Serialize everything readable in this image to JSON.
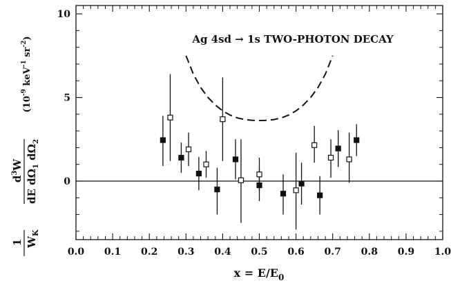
{
  "chart_data": {
    "type": "scatter",
    "title": "Ag 4sd → 1s TWO-PHOTON DECAY",
    "xlabel": "x = E/E",
    "xlabel_sub": "0",
    "ylabel_parts": {
      "prefix_num": "1",
      "prefix_den": "W",
      "prefix_den_sub": "K",
      "num": "d",
      "num_sup": "3",
      "num_tail": "W",
      "den": "dE dΩ",
      "den_sub1": "1",
      "den_mid": " dΩ",
      "den_sub2": "2",
      "units": "(10",
      "units_sup1": "-9",
      "units_mid": " keV",
      "units_sup2": "-1",
      "units_mid2": " sr",
      "units_sup3": "-2",
      "units_end": ")"
    },
    "xlim": [
      0.0,
      1.0
    ],
    "ylim": [
      -3.5,
      10.5
    ],
    "xticks": [
      "0.0",
      "0.1",
      "0.2",
      "0.3",
      "0.4",
      "0.5",
      "0.6",
      "0.7",
      "0.8",
      "0.9",
      "1.0"
    ],
    "yticks": [
      "0",
      "5",
      "10"
    ],
    "series": [
      {
        "marker": "filled-square",
        "points": [
          {
            "x": 0.237,
            "y": 2.45,
            "lo": 0.9,
            "hi": 3.9
          },
          {
            "x": 0.287,
            "y": 1.4,
            "lo": 0.5,
            "hi": 2.3
          },
          {
            "x": 0.335,
            "y": 0.45,
            "lo": -0.55,
            "hi": 1.45
          },
          {
            "x": 0.385,
            "y": -0.5,
            "lo": -2.0,
            "hi": 0.8
          },
          {
            "x": 0.435,
            "y": 1.3,
            "lo": 0.1,
            "hi": 2.5
          },
          {
            "x": 0.5,
            "y": -0.25,
            "lo": -1.2,
            "hi": 0.7
          },
          {
            "x": 0.565,
            "y": -0.75,
            "lo": -2.0,
            "hi": 0.4
          },
          {
            "x": 0.615,
            "y": -0.15,
            "lo": -1.4,
            "hi": 1.1
          },
          {
            "x": 0.665,
            "y": -0.85,
            "lo": -2.0,
            "hi": 0.3
          },
          {
            "x": 0.715,
            "y": 1.95,
            "lo": 0.85,
            "hi": 3.05
          },
          {
            "x": 0.765,
            "y": 2.45,
            "lo": 1.5,
            "hi": 3.4
          }
        ]
      },
      {
        "marker": "open-square",
        "points": [
          {
            "x": 0.257,
            "y": 3.8,
            "lo": 1.2,
            "hi": 6.4
          },
          {
            "x": 0.307,
            "y": 1.9,
            "lo": 0.9,
            "hi": 2.9
          },
          {
            "x": 0.355,
            "y": 1.0,
            "lo": 0.2,
            "hi": 1.8
          },
          {
            "x": 0.4,
            "y": 3.7,
            "lo": 1.2,
            "hi": 6.2
          },
          {
            "x": 0.45,
            "y": 0.05,
            "lo": -2.5,
            "hi": 2.5
          },
          {
            "x": 0.5,
            "y": 0.4,
            "lo": -0.6,
            "hi": 1.4
          },
          {
            "x": 0.6,
            "y": -0.55,
            "lo": -2.9,
            "hi": 1.7
          },
          {
            "x": 0.65,
            "y": 2.15,
            "lo": 1.1,
            "hi": 3.3
          },
          {
            "x": 0.695,
            "y": 1.4,
            "lo": 0.2,
            "hi": 2.5
          },
          {
            "x": 0.745,
            "y": 1.3,
            "lo": -0.1,
            "hi": 2.9
          }
        ]
      }
    ],
    "theory_curve": {
      "style": "dashed",
      "points": [
        [
          0.3,
          7.5
        ],
        [
          0.32,
          6.4
        ],
        [
          0.34,
          5.6
        ],
        [
          0.36,
          5.0
        ],
        [
          0.38,
          4.55
        ],
        [
          0.4,
          4.2
        ],
        [
          0.42,
          3.95
        ],
        [
          0.44,
          3.78
        ],
        [
          0.46,
          3.68
        ],
        [
          0.48,
          3.63
        ],
        [
          0.5,
          3.62
        ],
        [
          0.52,
          3.63
        ],
        [
          0.54,
          3.68
        ],
        [
          0.56,
          3.78
        ],
        [
          0.58,
          3.95
        ],
        [
          0.6,
          4.2
        ],
        [
          0.62,
          4.55
        ],
        [
          0.64,
          5.0
        ],
        [
          0.66,
          5.6
        ],
        [
          0.68,
          6.4
        ],
        [
          0.7,
          7.5
        ]
      ]
    },
    "zero_line": true
  }
}
